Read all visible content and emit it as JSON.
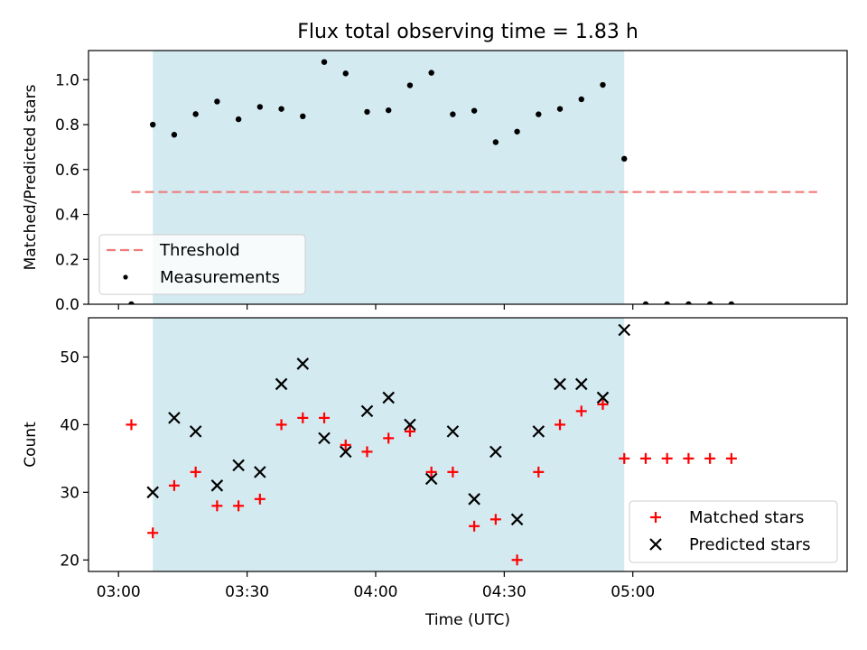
{
  "figure": {
    "title": "Flux total observing time = 1.83 h"
  },
  "chart_data": [
    {
      "type": "scatter",
      "panel": "ratio",
      "ylabel": "Matched/Predicted stars",
      "xlabel": "",
      "ylim": [
        0,
        1.13
      ],
      "yticks": [
        0.0,
        0.2,
        0.4,
        0.6,
        0.8,
        1.0
      ],
      "ytick_labels": [
        "0.0",
        "0.2",
        "0.4",
        "0.6",
        "0.8",
        "1.0"
      ],
      "x_time_window": [
        "02:53",
        "05:50"
      ],
      "shaded_interval": [
        "03:08",
        "04:58"
      ],
      "shade_color": "#d4eaf1",
      "threshold": {
        "name": "Threshold",
        "value": 0.5,
        "x_range": [
          "03:03",
          "05:43"
        ],
        "color": "#f07b7b"
      },
      "series": [
        {
          "name": "Measurements",
          "color": "#000000",
          "points": [
            [
              "03:03",
              0.0
            ],
            [
              "03:08",
              0.8
            ],
            [
              "03:13",
              0.755
            ],
            [
              "03:18",
              0.847
            ],
            [
              "03:23",
              0.903
            ],
            [
              "03:28",
              0.824
            ],
            [
              "03:33",
              0.879
            ],
            [
              "03:38",
              0.87
            ],
            [
              "03:43",
              0.837
            ],
            [
              "03:48",
              1.079
            ],
            [
              "03:53",
              1.028
            ],
            [
              "03:58",
              0.857
            ],
            [
              "04:03",
              0.864
            ],
            [
              "04:08",
              0.975
            ],
            [
              "04:13",
              1.031
            ],
            [
              "04:18",
              0.846
            ],
            [
              "04:23",
              0.862
            ],
            [
              "04:28",
              0.722
            ],
            [
              "04:33",
              0.769
            ],
            [
              "04:38",
              0.846
            ],
            [
              "04:43",
              0.87
            ],
            [
              "04:48",
              0.913
            ],
            [
              "04:53",
              0.977
            ],
            [
              "04:58",
              0.648
            ],
            [
              "05:03",
              0.0
            ],
            [
              "05:08",
              0.0
            ],
            [
              "05:13",
              0.0
            ],
            [
              "05:18",
              0.0
            ],
            [
              "05:23",
              0.0
            ]
          ]
        }
      ],
      "legend": {
        "placement": "lower-left",
        "entries": [
          "Threshold",
          "Measurements"
        ]
      }
    },
    {
      "type": "scatter",
      "panel": "counts",
      "ylabel": "Count",
      "xlabel": "Time (UTC)",
      "ylim": [
        18.3,
        55.8
      ],
      "yticks": [
        20,
        30,
        40,
        50
      ],
      "ytick_labels": [
        "20",
        "30",
        "40",
        "50"
      ],
      "xticks": [
        "03:00",
        "03:30",
        "04:00",
        "04:30",
        "05:00"
      ],
      "xtick_labels": [
        "03:00",
        "03:30",
        "04:00",
        "04:30",
        "05:00"
      ],
      "x_time_window": [
        "02:53",
        "05:50"
      ],
      "shaded_interval": [
        "03:08",
        "04:58"
      ],
      "shade_color": "#d4eaf1",
      "series": [
        {
          "name": "Matched stars",
          "marker": "plus",
          "color": "#ff0000",
          "points": [
            [
              "03:03",
              40
            ],
            [
              "03:08",
              24
            ],
            [
              "03:13",
              31
            ],
            [
              "03:18",
              33
            ],
            [
              "03:23",
              28
            ],
            [
              "03:28",
              28
            ],
            [
              "03:33",
              29
            ],
            [
              "03:38",
              40
            ],
            [
              "03:43",
              41
            ],
            [
              "03:48",
              41
            ],
            [
              "03:53",
              37
            ],
            [
              "03:58",
              36
            ],
            [
              "04:03",
              38
            ],
            [
              "04:08",
              39
            ],
            [
              "04:13",
              33
            ],
            [
              "04:18",
              33
            ],
            [
              "04:23",
              25
            ],
            [
              "04:28",
              26
            ],
            [
              "04:33",
              20
            ],
            [
              "04:38",
              33
            ],
            [
              "04:43",
              40
            ],
            [
              "04:48",
              42
            ],
            [
              "04:53",
              43
            ],
            [
              "04:58",
              35
            ],
            [
              "05:03",
              35
            ],
            [
              "05:08",
              35
            ],
            [
              "05:13",
              35
            ],
            [
              "05:18",
              35
            ],
            [
              "05:23",
              35
            ]
          ]
        },
        {
          "name": "Predicted stars",
          "marker": "x",
          "color": "#000000",
          "points": [
            [
              "03:08",
              30
            ],
            [
              "03:13",
              41
            ],
            [
              "03:18",
              39
            ],
            [
              "03:23",
              31
            ],
            [
              "03:28",
              34
            ],
            [
              "03:33",
              33
            ],
            [
              "03:38",
              46
            ],
            [
              "03:43",
              49
            ],
            [
              "03:48",
              38
            ],
            [
              "03:53",
              36
            ],
            [
              "03:58",
              42
            ],
            [
              "04:03",
              44
            ],
            [
              "04:08",
              40
            ],
            [
              "04:13",
              32
            ],
            [
              "04:18",
              39
            ],
            [
              "04:23",
              29
            ],
            [
              "04:28",
              36
            ],
            [
              "04:33",
              26
            ],
            [
              "04:38",
              39
            ],
            [
              "04:43",
              46
            ],
            [
              "04:48",
              46
            ],
            [
              "04:53",
              44
            ],
            [
              "04:58",
              54
            ]
          ]
        }
      ],
      "legend": {
        "placement": "lower-right",
        "entries": [
          "Matched stars",
          "Predicted stars"
        ]
      }
    }
  ]
}
